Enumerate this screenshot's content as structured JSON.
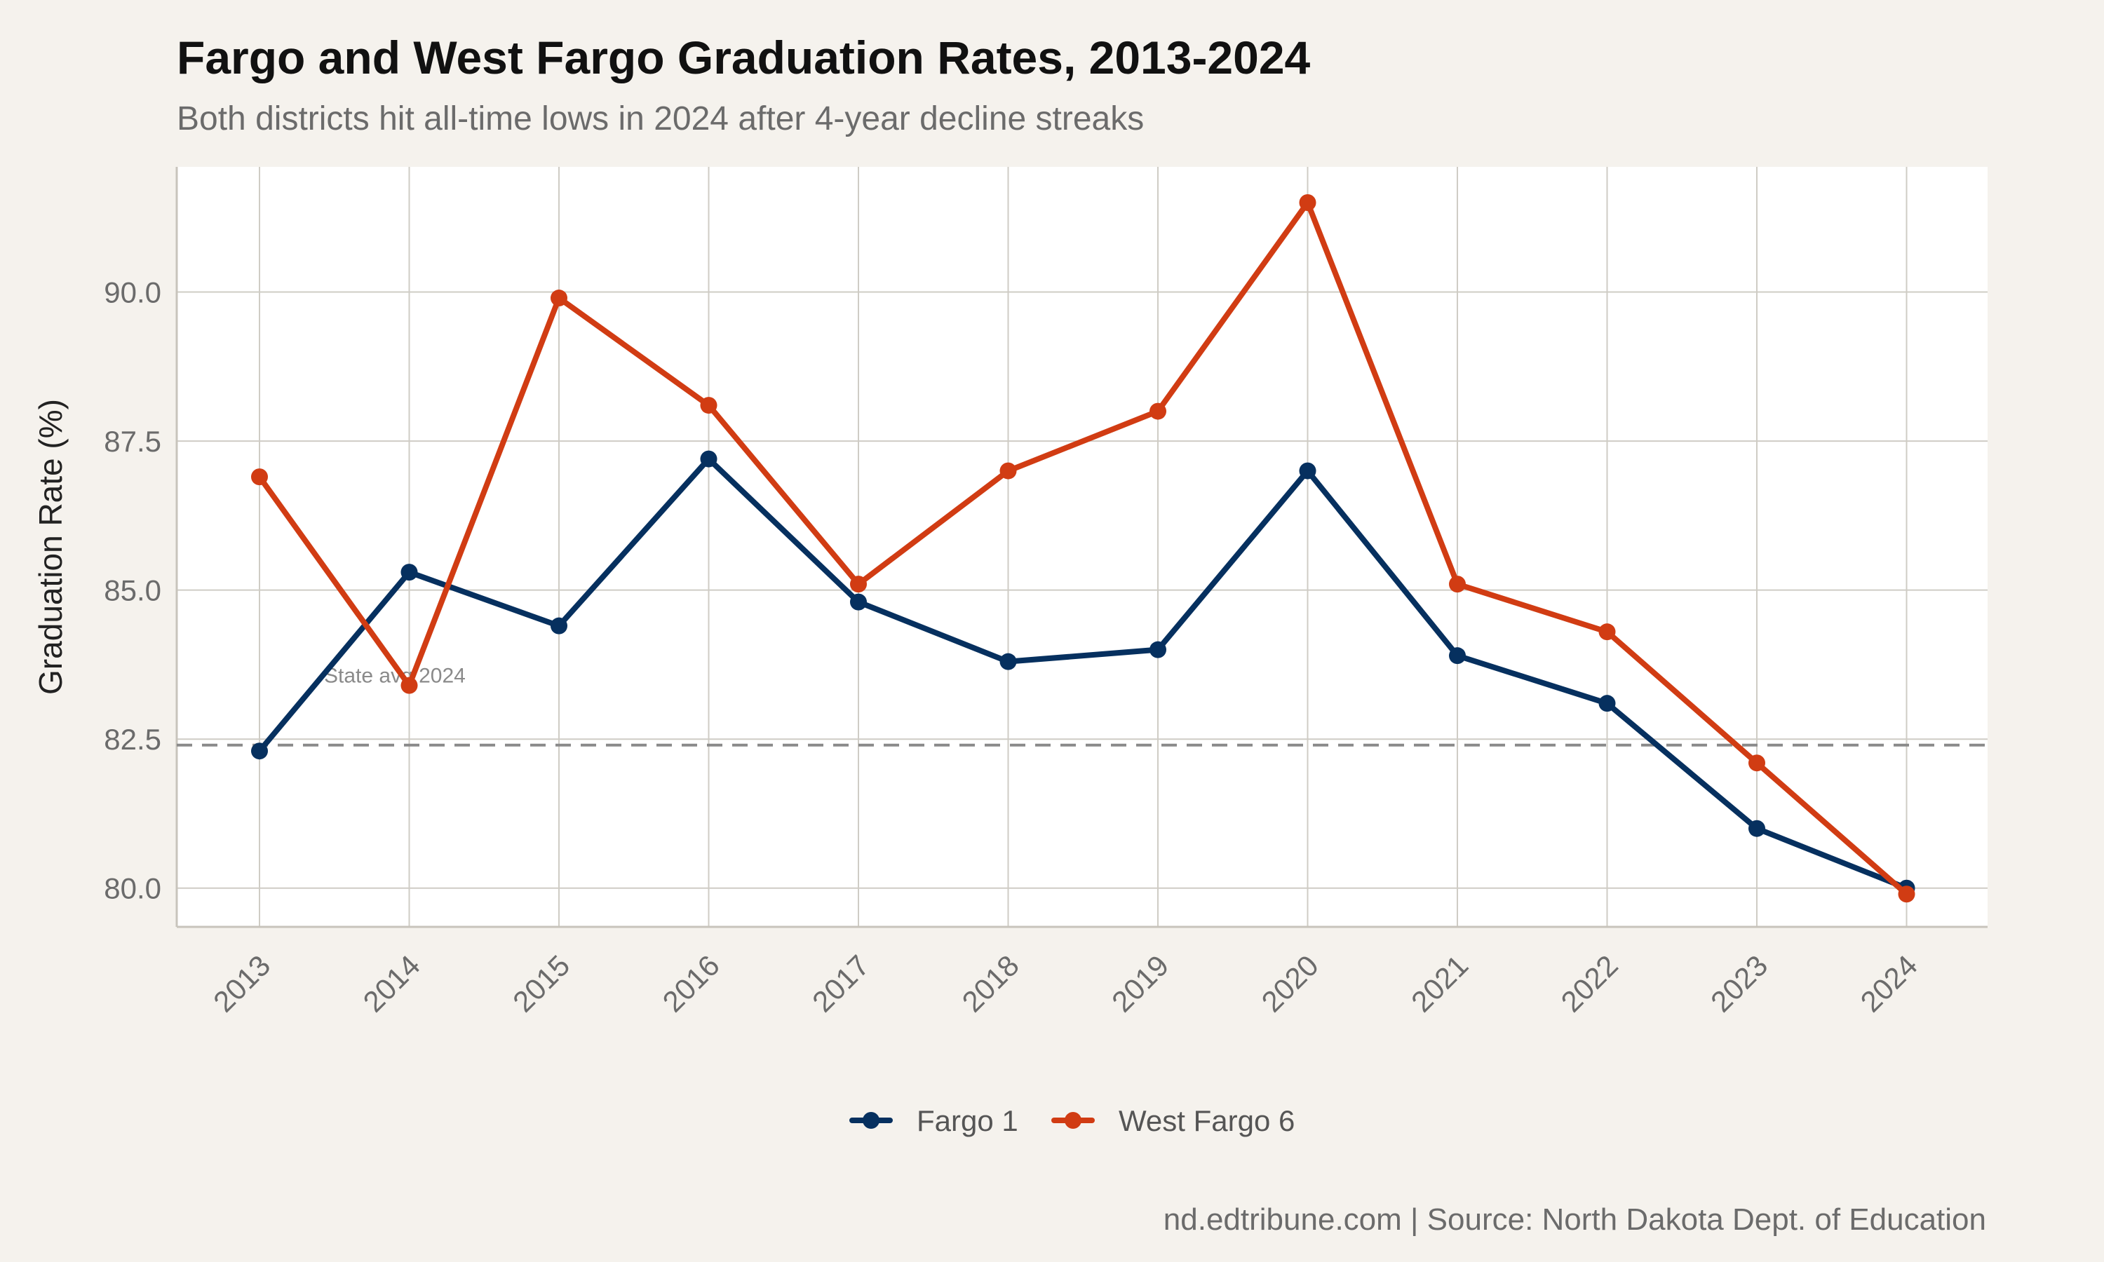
{
  "chart_data": {
    "type": "line",
    "title": "Fargo and West Fargo Graduation Rates, 2013-2024",
    "subtitle": "Both districts hit all-time lows in 2024 after 4-year decline streaks",
    "xlabel": "",
    "ylabel": "Graduation Rate (%)",
    "x": [
      "2013",
      "2014",
      "2015",
      "2016",
      "2017",
      "2018",
      "2019",
      "2020",
      "2021",
      "2022",
      "2023",
      "2024"
    ],
    "series": [
      {
        "name": "Fargo 1",
        "color": "#06305f",
        "values": [
          82.3,
          85.3,
          84.4,
          87.2,
          84.8,
          83.8,
          84.0,
          87.0,
          83.9,
          83.1,
          81.0,
          80.0
        ]
      },
      {
        "name": "West Fargo 6",
        "color": "#d13c13",
        "values": [
          86.9,
          83.4,
          89.9,
          88.1,
          85.1,
          87.0,
          88.0,
          91.5,
          85.1,
          84.3,
          82.1,
          79.9
        ]
      }
    ],
    "yticks": [
      "80.0",
      "82.5",
      "85.0",
      "87.5",
      "90.0"
    ],
    "ylim": [
      79.35,
      92.1
    ],
    "reference_line": {
      "value": 82.4,
      "label": "State avg 2024",
      "color": "#8a8a8a",
      "style": "dashed"
    },
    "grid": true,
    "legend_position": "bottom",
    "caption": "nd.edtribune.com | Source: North Dakota Dept. of Education"
  }
}
